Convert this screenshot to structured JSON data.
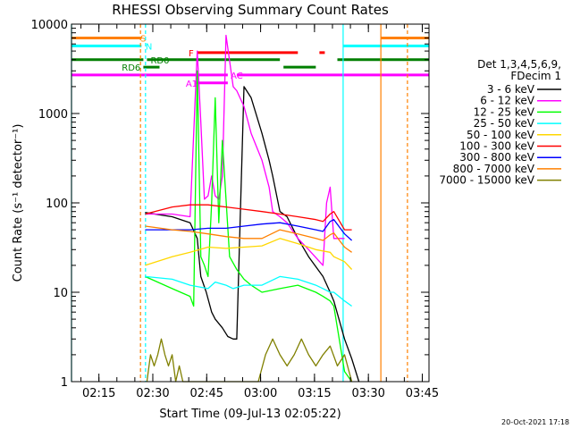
{
  "chart_data": {
    "type": "line",
    "title": "RHESSI Observing Summary Count Rates",
    "xlabel": "Start Time (09-Jul-13 02:05:22)",
    "ylabel": "Count Rate (s⁻¹ detector⁻¹)",
    "yscale": "log",
    "ylim": [
      1,
      10000
    ],
    "xlim_minutes": [
      2.0,
      101.5
    ],
    "x_ticks": [
      {
        "label": "02:15",
        "t": 9.63
      },
      {
        "label": "02:30",
        "t": 24.63
      },
      {
        "label": "02:45",
        "t": 39.63
      },
      {
        "label": "03:00",
        "t": 54.63
      },
      {
        "label": "03:15",
        "t": 69.63
      },
      {
        "label": "03:30",
        "t": 84.63
      },
      {
        "label": "03:45",
        "t": 99.63
      }
    ],
    "y_ticks": [
      {
        "label": "1",
        "v": 1
      },
      {
        "label": "10",
        "v": 10
      },
      {
        "label": "100",
        "v": 100
      },
      {
        "label": "1000",
        "v": 1000
      },
      {
        "label": "10000",
        "v": 10000
      }
    ],
    "legend": {
      "header": [
        "Det 1,3,4,5,6,9,",
        "FDecim 1"
      ],
      "placement": "right"
    },
    "grid": false,
    "series": [
      {
        "name": "3 - 6 keV",
        "color": "#000000",
        "t": [
          22.5,
          30,
          35,
          37,
          38,
          39.5,
          41,
          42,
          44,
          45.5,
          47,
          48,
          50,
          52,
          55,
          57,
          58,
          60,
          62,
          65,
          68,
          72,
          74,
          75,
          78,
          80,
          82
        ],
        "values": [
          78,
          70,
          60,
          40,
          15,
          10,
          6,
          5,
          4,
          3.2,
          3,
          3,
          2000,
          1500,
          600,
          300,
          200,
          80,
          70,
          40,
          25,
          15,
          10,
          8,
          3,
          1.8,
          1
        ]
      },
      {
        "name": "6 - 12 keV",
        "color": "#ff00ff",
        "t": [
          22.5,
          30,
          35,
          37,
          38,
          39,
          40,
          41,
          42,
          43,
          44,
          45,
          47,
          48,
          50,
          52,
          55,
          57,
          58,
          60,
          62,
          65,
          68,
          72,
          73,
          74,
          75,
          78
        ],
        "values": [
          75,
          75,
          70,
          5000,
          800,
          110,
          120,
          200,
          120,
          110,
          200,
          7500,
          2000,
          1800,
          1200,
          600,
          300,
          150,
          80,
          70,
          60,
          40,
          30,
          20,
          100,
          150,
          40,
          40
        ]
      },
      {
        "name": "12 - 25 keV",
        "color": "#00ff00",
        "t": [
          22.5,
          30,
          35,
          36,
          37,
          38,
          39,
          40,
          41,
          42,
          43,
          44,
          46,
          48,
          50,
          52,
          55,
          60,
          65,
          70,
          72,
          74,
          75,
          78,
          80
        ],
        "values": [
          15,
          11,
          9,
          7,
          3000,
          25,
          20,
          15,
          100,
          1500,
          60,
          500,
          25,
          18,
          14,
          12,
          10,
          11,
          12,
          10,
          9,
          8,
          7,
          1.3,
          1
        ]
      },
      {
        "name": "25 - 50 keV",
        "color": "#00ffff",
        "t": [
          22.5,
          30,
          35,
          40,
          42,
          45,
          47,
          50,
          55,
          60,
          65,
          70,
          72,
          74,
          75,
          78,
          80
        ],
        "values": [
          15,
          14,
          12,
          11,
          13,
          12,
          11,
          12,
          12,
          15,
          14,
          12,
          11,
          10,
          10,
          8,
          7
        ]
      },
      {
        "name": "50 - 100 keV",
        "color": "#ffd700",
        "t": [
          22.5,
          30,
          35,
          40,
          45,
          50,
          55,
          60,
          65,
          70,
          74,
          75,
          78,
          80
        ],
        "values": [
          20,
          25,
          28,
          32,
          31,
          32,
          33,
          40,
          35,
          30,
          28,
          25,
          22,
          18
        ]
      },
      {
        "name": "100 - 300 keV",
        "color": "#ff0000",
        "t": [
          22.5,
          30,
          35,
          40,
          45,
          50,
          55,
          60,
          65,
          70,
          72,
          74,
          75,
          78,
          80
        ],
        "values": [
          75,
          90,
          95,
          95,
          90,
          85,
          80,
          75,
          70,
          65,
          62,
          75,
          80,
          50,
          50
        ]
      },
      {
        "name": "300 - 800 keV",
        "color": "#0000ff",
        "t": [
          22.5,
          30,
          35,
          40,
          45,
          50,
          55,
          60,
          65,
          70,
          72,
          74,
          75,
          78,
          80
        ],
        "values": [
          50,
          50,
          50,
          52,
          52,
          55,
          58,
          60,
          55,
          50,
          48,
          62,
          65,
          45,
          38
        ]
      },
      {
        "name": "800 - 7000 keV",
        "color": "#ff8000",
        "t": [
          22.5,
          30,
          35,
          40,
          45,
          50,
          55,
          60,
          65,
          70,
          72,
          74,
          75,
          78,
          80
        ],
        "values": [
          55,
          50,
          48,
          45,
          42,
          40,
          40,
          50,
          45,
          40,
          38,
          44,
          46,
          32,
          28
        ]
      },
      {
        "name": "7000 - 15000 keV",
        "color": "#808000",
        "t": [
          23,
          24,
          25,
          26,
          27,
          28,
          29,
          30,
          31,
          32,
          33,
          54,
          56,
          58,
          60,
          62,
          64,
          66,
          68,
          70,
          72,
          74,
          76,
          78,
          80
        ],
        "values": [
          1,
          2,
          1.5,
          2,
          3,
          2,
          1.5,
          2,
          1,
          1.5,
          1,
          1,
          2,
          3,
          2,
          1.5,
          2,
          3,
          2,
          1.5,
          2,
          2.5,
          1.5,
          2,
          1
        ]
      }
    ],
    "flag_bars": [
      {
        "label": "S",
        "color": "#ff8000",
        "level": 7000,
        "segments": [
          [
            2,
            21.5
          ],
          [
            88,
            101.5
          ]
        ],
        "label_t": 21.2
      },
      {
        "label": "N",
        "color": "#00ffff",
        "level": 5700,
        "segments": [
          [
            2,
            21.5
          ],
          [
            77.5,
            101.5
          ]
        ],
        "label_t": 22.6
      },
      {
        "label": "F",
        "color": "#ff0000",
        "level": 4800,
        "segments": [
          [
            37,
            65
          ],
          [
            71,
            72.5
          ]
        ],
        "label_t": 34.6
      },
      {
        "label": "RD0",
        "color": "#007f00",
        "level": 4000,
        "segments": [
          [
            2,
            22
          ],
          [
            23,
            60
          ],
          [
            76,
            101.5
          ]
        ],
        "label_t": 24
      },
      {
        "label": "RD6",
        "color": "#007f00",
        "level": 3300,
        "segments": [
          [
            22,
            26.5
          ],
          [
            61,
            70
          ]
        ],
        "label_t": 16
      },
      {
        "label": "AC",
        "color": "#ff00ff",
        "level": 2700,
        "segments": [
          [
            2,
            45.5
          ],
          [
            48,
            101.5
          ]
        ],
        "label_t": 46.3
      },
      {
        "label": "A1",
        "color": "#ff00ff",
        "level": 2200,
        "segments": [
          [
            36.5,
            45.5
          ]
        ],
        "label_t": 33.8
      }
    ],
    "vlines": [
      {
        "t": 21.2,
        "color": "#ff8000",
        "dashed": true
      },
      {
        "t": 22.6,
        "color": "#00ffff",
        "dashed": true
      },
      {
        "t": 2.0,
        "color": "#00ffff",
        "dashed": false
      },
      {
        "t": 77.6,
        "color": "#00ffff",
        "dashed": false
      },
      {
        "t": 88.1,
        "color": "#ff8000",
        "dashed": false
      },
      {
        "t": 95.5,
        "color": "#ff8000",
        "dashed": true
      }
    ]
  },
  "timestamp": "20-Oct-2021 17:18"
}
